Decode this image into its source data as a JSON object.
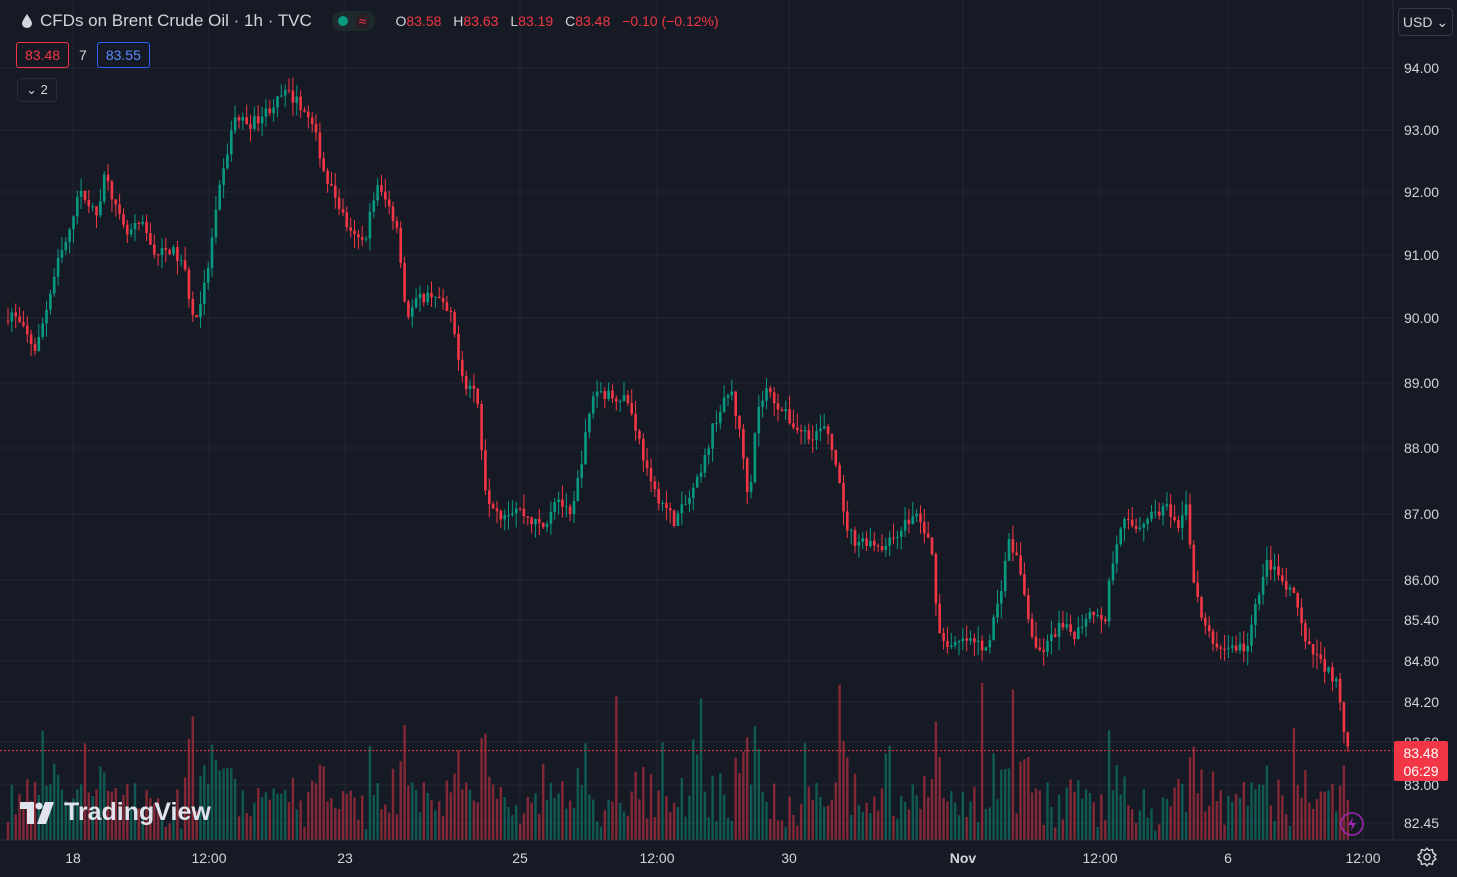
{
  "header": {
    "symbol_title": "CFDs on Brent Crude Oil · 1h · TVC",
    "ohlc": {
      "o_label": "O",
      "o": "83.58",
      "h_label": "H",
      "h": "83.63",
      "l_label": "L",
      "l": "83.19",
      "c_label": "C",
      "c": "83.48",
      "change": "−0.10 (−0.12%)"
    },
    "wave_icon": "≈"
  },
  "trade": {
    "sell": "83.48",
    "spread": "7",
    "buy": "83.55"
  },
  "collapse_label": "⌄ 2",
  "currency": "USD ⌄",
  "logo_text": "TradingView",
  "colors": {
    "up": "#089981",
    "down": "#f23645",
    "background": "#161a25",
    "grid": "#232632"
  },
  "icons": [
    "drop-icon",
    "settings-icon",
    "flash-icon",
    "chevron-down-icon"
  ],
  "chart_data": {
    "type": "candlestick",
    "grid": true,
    "y_ticks": [
      "94.00",
      "93.00",
      "92.00",
      "91.00",
      "90.00",
      "89.00",
      "88.00",
      "87.00",
      "86.00",
      "85.40",
      "84.80",
      "84.20",
      "83.60",
      "83.00",
      "82.45"
    ],
    "x_ticks": [
      "18",
      "12:00",
      "23",
      "25",
      "12:00",
      "30",
      "Nov",
      "12:00",
      "6",
      "12:00"
    ],
    "last_price": "83.48",
    "countdown": "06:29",
    "price_path": [
      [
        0,
        89.8
      ],
      [
        15,
        90.1
      ],
      [
        40,
        89.5
      ],
      [
        62,
        90.9
      ],
      [
        75,
        91.4
      ],
      [
        80,
        92.0
      ],
      [
        90,
        91.9
      ],
      [
        100,
        91.6
      ],
      [
        110,
        92.4
      ],
      [
        118,
        91.8
      ],
      [
        130,
        91.3
      ],
      [
        145,
        91.5
      ],
      [
        160,
        91.0
      ],
      [
        175,
        91.1
      ],
      [
        188,
        90.8
      ],
      [
        198,
        89.9
      ],
      [
        210,
        90.6
      ],
      [
        222,
        91.9
      ],
      [
        238,
        93.2
      ],
      [
        255,
        93.1
      ],
      [
        270,
        93.3
      ],
      [
        290,
        93.6
      ],
      [
        305,
        93.4
      ],
      [
        318,
        93.0
      ],
      [
        330,
        92.2
      ],
      [
        340,
        91.9
      ],
      [
        355,
        91.3
      ],
      [
        368,
        91.2
      ],
      [
        380,
        92.1
      ],
      [
        392,
        91.8
      ],
      [
        402,
        91.4
      ],
      [
        410,
        90.0
      ],
      [
        422,
        90.3
      ],
      [
        438,
        90.4
      ],
      [
        455,
        90.0
      ],
      [
        468,
        89.0
      ],
      [
        480,
        88.9
      ],
      [
        490,
        87.3
      ],
      [
        505,
        87.0
      ],
      [
        520,
        87.1
      ],
      [
        535,
        86.9
      ],
      [
        548,
        86.8
      ],
      [
        560,
        87.3
      ],
      [
        575,
        86.9
      ],
      [
        585,
        87.8
      ],
      [
        598,
        88.9
      ],
      [
        615,
        88.8
      ],
      [
        630,
        88.8
      ],
      [
        640,
        88.3
      ],
      [
        655,
        87.4
      ],
      [
        665,
        87.2
      ],
      [
        678,
        86.9
      ],
      [
        692,
        87.2
      ],
      [
        705,
        87.6
      ],
      [
        718,
        88.4
      ],
      [
        735,
        88.9
      ],
      [
        745,
        88.1
      ],
      [
        753,
        87.2
      ],
      [
        760,
        88.5
      ],
      [
        770,
        88.9
      ],
      [
        785,
        88.6
      ],
      [
        800,
        88.3
      ],
      [
        815,
        88.2
      ],
      [
        828,
        88.3
      ],
      [
        840,
        87.8
      ],
      [
        848,
        86.9
      ],
      [
        858,
        86.6
      ],
      [
        872,
        86.6
      ],
      [
        890,
        86.5
      ],
      [
        905,
        86.8
      ],
      [
        920,
        87.0
      ],
      [
        935,
        86.5
      ],
      [
        943,
        85.2
      ],
      [
        955,
        85.0
      ],
      [
        970,
        85.1
      ],
      [
        990,
        85.0
      ],
      [
        1003,
        85.7
      ],
      [
        1012,
        86.6
      ],
      [
        1022,
        86.3
      ],
      [
        1030,
        85.6
      ],
      [
        1040,
        84.9
      ],
      [
        1050,
        85.0
      ],
      [
        1062,
        85.3
      ],
      [
        1080,
        85.2
      ],
      [
        1095,
        85.6
      ],
      [
        1108,
        85.3
      ],
      [
        1115,
        86.2
      ],
      [
        1125,
        86.9
      ],
      [
        1140,
        86.8
      ],
      [
        1155,
        87.0
      ],
      [
        1170,
        87.1
      ],
      [
        1182,
        86.7
      ],
      [
        1190,
        87.2
      ],
      [
        1198,
        85.9
      ],
      [
        1208,
        85.3
      ],
      [
        1220,
        85.0
      ],
      [
        1235,
        85.0
      ],
      [
        1252,
        85.0
      ],
      [
        1262,
        85.8
      ],
      [
        1272,
        86.3
      ],
      [
        1288,
        85.9
      ],
      [
        1300,
        85.7
      ],
      [
        1310,
        85.0
      ],
      [
        1325,
        84.8
      ],
      [
        1340,
        84.5
      ],
      [
        1350,
        83.5
      ],
      [
        1355,
        83.48
      ]
    ],
    "volume_profile": "hourly volume bars along bottom, colored by candle direction"
  }
}
